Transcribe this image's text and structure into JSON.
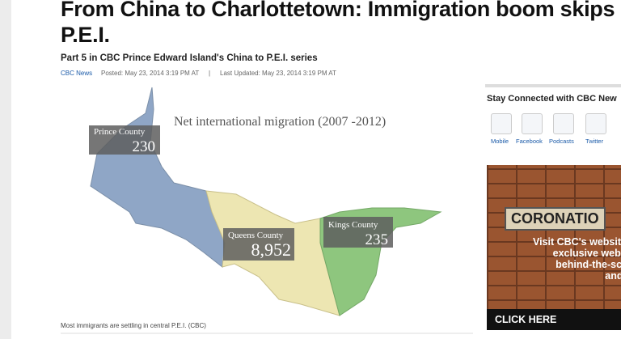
{
  "article": {
    "title_lines": [
      "From China to Charlottetown: Immigration boom skips r",
      "P.E.I."
    ],
    "subtitle": "Part 5 in CBC Prince Edward Island's China to P.E.I. series",
    "byline": {
      "source": "CBC News",
      "posted": "Posted: May 23, 2014 3:19 PM AT",
      "separator": "|",
      "updated": "Last Updated: May 23, 2014 3:19 PM AT"
    },
    "map": {
      "title": "Net international migration (2007 -2012)",
      "regions": [
        {
          "name": "Prince County",
          "value": "230"
        },
        {
          "name": "Queens County",
          "value": "8,952"
        },
        {
          "name": "Kings County",
          "value": "235"
        }
      ],
      "caption": "Most immigrants are settling in central P.E.I. (CBC)"
    }
  },
  "sidebar": {
    "heading": "Stay Connected with CBC New",
    "icons": [
      "Mobile",
      "Facebook",
      "Podcasts",
      "Twitter"
    ],
    "ad": {
      "title": "CORONATIO",
      "lines": [
        "Visit CBC's websit",
        "exclusive web-only c",
        "behind-the-scenes v",
        "and more."
      ],
      "cta": "CLICK HERE"
    }
  }
}
